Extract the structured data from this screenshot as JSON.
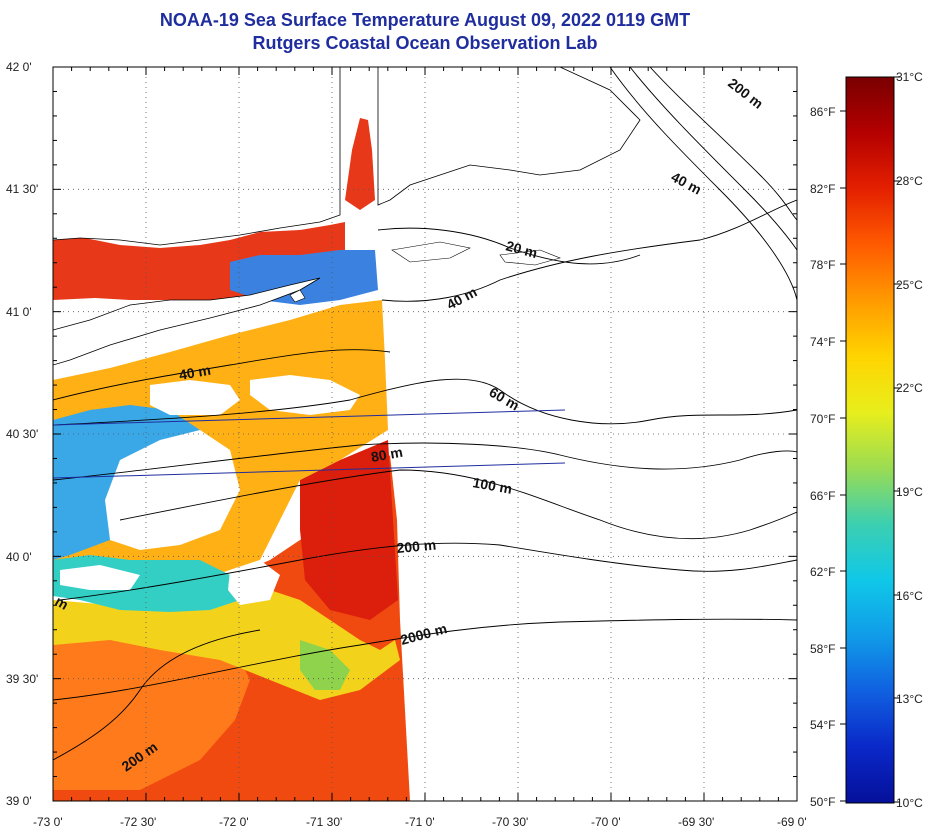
{
  "title_line1": "NOAA-19 Sea Surface Temperature August 09, 2022 0119 GMT",
  "title_line2": "Rutgers Coastal Ocean Observation Lab",
  "lat_labels": [
    "42 0'",
    "41 30'",
    "41 0'",
    "40 30'",
    "40 0'",
    "39 30'",
    "39 0'"
  ],
  "lon_labels": [
    "-73 0'",
    "-72 30'",
    "-72 0'",
    "-71 30'",
    "-71 0'",
    "-70 30'",
    "-70 0'",
    "-69 30'",
    "-69 0'"
  ],
  "fahrenheit_labels": [
    "86°F",
    "82°F",
    "78°F",
    "74°F",
    "70°F",
    "66°F",
    "62°F",
    "58°F",
    "54°F",
    "50°F"
  ],
  "celsius_labels": [
    "31°C",
    "28°C",
    "25°C",
    "22°C",
    "19°C",
    "16°C",
    "13°C",
    "10°C"
  ],
  "contour_labels": [
    "200 m",
    "40 m",
    "20 m",
    "40 m",
    "40 m",
    "60 m",
    "80 m",
    "100 m",
    "200 m",
    "2000 m",
    "200 m",
    "m"
  ],
  "colorbar_stops": [
    "#7a0000",
    "#b40000",
    "#e42000",
    "#ff5a00",
    "#ff9a00",
    "#ffd400",
    "#e8ee1c",
    "#9bdc52",
    "#3ccfb0",
    "#10c8e8",
    "#109ce8",
    "#1060e0",
    "#0a28c8",
    "#05109a"
  ]
}
